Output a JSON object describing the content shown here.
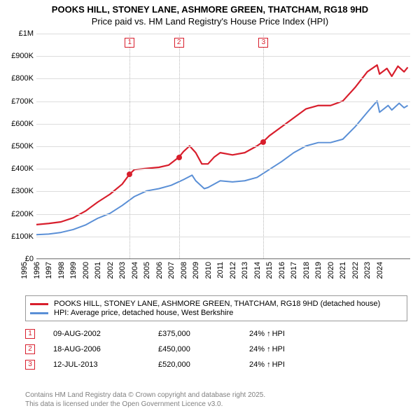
{
  "title_main": "POOKS HILL, STONEY LANE, ASHMORE GREEN, THATCHAM, RG18 9HD",
  "title_sub": "Price paid vs. HM Land Registry's House Price Index (HPI)",
  "chart": {
    "type": "line",
    "background_color": "#ffffff",
    "grid_color": "#dddddd",
    "axis_color": "#888888",
    "ytick_fontsize": 11,
    "xtick_fontsize": 11,
    "ylim": [
      0,
      1000000
    ],
    "yticks": [
      {
        "v": 0,
        "label": "£0"
      },
      {
        "v": 100000,
        "label": "£100K"
      },
      {
        "v": 200000,
        "label": "£200K"
      },
      {
        "v": 300000,
        "label": "£300K"
      },
      {
        "v": 400000,
        "label": "£400K"
      },
      {
        "v": 500000,
        "label": "£500K"
      },
      {
        "v": 600000,
        "label": "£600K"
      },
      {
        "v": 700000,
        "label": "£700K"
      },
      {
        "v": 800000,
        "label": "£800K"
      },
      {
        "v": 900000,
        "label": "£900K"
      },
      {
        "v": 1000000,
        "label": "£1M"
      }
    ],
    "xlim": [
      1995,
      2025.5
    ],
    "xticks": [
      1995,
      1996,
      1997,
      1998,
      1999,
      2000,
      2001,
      2002,
      2003,
      2004,
      2005,
      2006,
      2007,
      2008,
      2009,
      2010,
      2011,
      2012,
      2013,
      2014,
      2015,
      2016,
      2017,
      2018,
      2019,
      2020,
      2021,
      2022,
      2023,
      2024
    ],
    "series": [
      {
        "name": "red",
        "color": "#d81e2c",
        "width": 2.2,
        "label": "POOKS HILL, STONEY LANE, ASHMORE GREEN, THATCHAM, RG18 9HD (detached house)",
        "points": [
          [
            1995,
            150000
          ],
          [
            1996,
            155000
          ],
          [
            1997,
            162000
          ],
          [
            1998,
            180000
          ],
          [
            1999,
            210000
          ],
          [
            2000,
            250000
          ],
          [
            2001,
            285000
          ],
          [
            2002,
            330000
          ],
          [
            2002.61,
            375000
          ],
          [
            2003,
            395000
          ],
          [
            2004,
            400000
          ],
          [
            2005,
            405000
          ],
          [
            2005.8,
            415000
          ],
          [
            2006.63,
            450000
          ],
          [
            2007,
            475000
          ],
          [
            2007.5,
            500000
          ],
          [
            2008,
            470000
          ],
          [
            2008.5,
            420000
          ],
          [
            2009,
            420000
          ],
          [
            2009.5,
            450000
          ],
          [
            2010,
            470000
          ],
          [
            2011,
            460000
          ],
          [
            2012,
            470000
          ],
          [
            2013,
            500000
          ],
          [
            2013.53,
            520000
          ],
          [
            2014,
            545000
          ],
          [
            2015,
            585000
          ],
          [
            2016,
            625000
          ],
          [
            2017,
            665000
          ],
          [
            2018,
            680000
          ],
          [
            2019,
            680000
          ],
          [
            2020,
            700000
          ],
          [
            2021,
            760000
          ],
          [
            2022,
            830000
          ],
          [
            2022.8,
            860000
          ],
          [
            2023,
            820000
          ],
          [
            2023.6,
            845000
          ],
          [
            2024,
            810000
          ],
          [
            2024.5,
            855000
          ],
          [
            2025,
            830000
          ],
          [
            2025.3,
            850000
          ]
        ]
      },
      {
        "name": "blue",
        "color": "#5a8fd6",
        "width": 2.0,
        "label": "HPI: Average price, detached house, West Berkshire",
        "points": [
          [
            1995,
            105000
          ],
          [
            1996,
            108000
          ],
          [
            1997,
            115000
          ],
          [
            1998,
            128000
          ],
          [
            1999,
            148000
          ],
          [
            2000,
            178000
          ],
          [
            2001,
            200000
          ],
          [
            2002,
            235000
          ],
          [
            2003,
            275000
          ],
          [
            2004,
            300000
          ],
          [
            2005,
            310000
          ],
          [
            2006,
            325000
          ],
          [
            2007,
            350000
          ],
          [
            2007.7,
            370000
          ],
          [
            2008,
            345000
          ],
          [
            2008.7,
            310000
          ],
          [
            2009,
            315000
          ],
          [
            2010,
            345000
          ],
          [
            2011,
            340000
          ],
          [
            2012,
            345000
          ],
          [
            2013,
            360000
          ],
          [
            2014,
            395000
          ],
          [
            2015,
            430000
          ],
          [
            2016,
            470000
          ],
          [
            2017,
            500000
          ],
          [
            2018,
            515000
          ],
          [
            2019,
            515000
          ],
          [
            2020,
            530000
          ],
          [
            2021,
            585000
          ],
          [
            2022,
            650000
          ],
          [
            2022.8,
            700000
          ],
          [
            2023,
            650000
          ],
          [
            2023.7,
            680000
          ],
          [
            2024,
            660000
          ],
          [
            2024.6,
            690000
          ],
          [
            2025,
            670000
          ],
          [
            2025.3,
            680000
          ]
        ]
      }
    ],
    "sale_markers": [
      {
        "n": "1",
        "x": 2002.61,
        "y": 375000,
        "box_top": 6
      },
      {
        "n": "2",
        "x": 2006.63,
        "y": 450000,
        "box_top": 6
      },
      {
        "n": "3",
        "x": 2013.53,
        "y": 520000,
        "box_top": 6
      }
    ]
  },
  "legend": [
    {
      "color": "#d81e2c",
      "label": "POOKS HILL, STONEY LANE, ASHMORE GREEN, THATCHAM, RG18 9HD (detached house)"
    },
    {
      "color": "#5a8fd6",
      "label": "HPI: Average price, detached house, West Berkshire"
    }
  ],
  "sales": [
    {
      "n": "1",
      "date": "09-AUG-2002",
      "price": "£375,000",
      "delta": "24%",
      "delta_label": "HPI"
    },
    {
      "n": "2",
      "date": "18-AUG-2006",
      "price": "£450,000",
      "delta": "24%",
      "delta_label": "HPI"
    },
    {
      "n": "3",
      "date": "12-JUL-2013",
      "price": "£520,000",
      "delta": "24%",
      "delta_label": "HPI"
    }
  ],
  "disclaimer_l1": "Contains HM Land Registry data © Crown copyright and database right 2025.",
  "disclaimer_l2": "This data is licensed under the Open Government Licence v3.0.",
  "colors": {
    "marker_border": "#d81e2c",
    "disclaimer": "#808080"
  }
}
